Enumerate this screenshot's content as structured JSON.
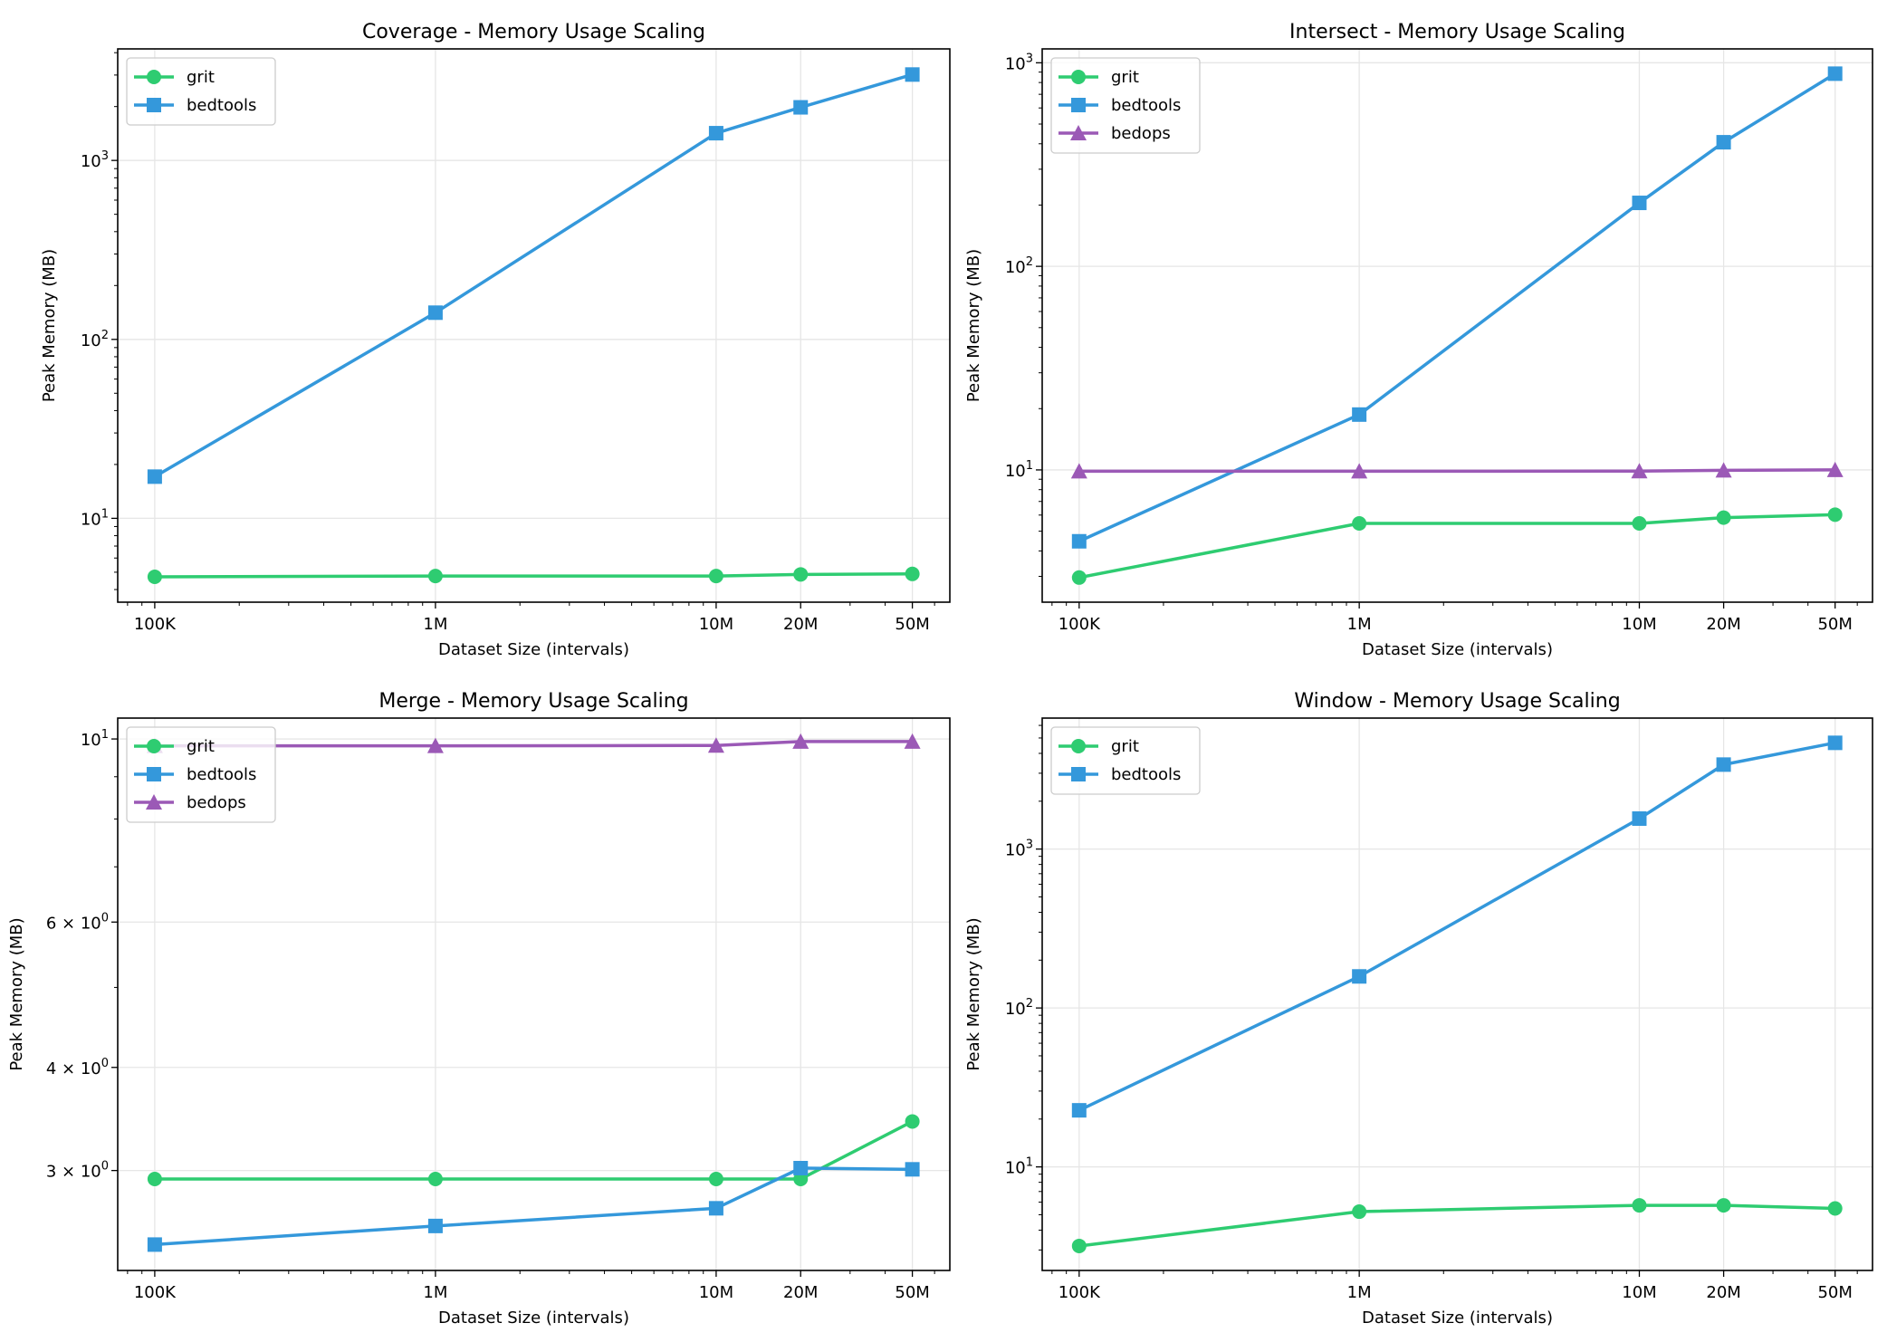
{
  "chart_data": [
    {
      "type": "line",
      "title": "Coverage - Memory Usage Scaling",
      "xlabel": "Dataset Size (intervals)",
      "ylabel": "Peak Memory (MB)",
      "xscale": "log",
      "yscale": "log",
      "xlim": [
        73800,
        68000000
      ],
      "ylim": [
        3.4,
        4200
      ],
      "grid": true,
      "legend_position": "top-left",
      "x": [
        100000,
        1000000,
        10000000,
        20000000,
        50000000
      ],
      "xtick_labels": [
        "100K",
        "1M",
        "10M",
        "20M",
        "50M"
      ],
      "yticks": [
        {
          "value": 10,
          "mantissa": "",
          "base": "10",
          "exponent": "1"
        },
        {
          "value": 100,
          "mantissa": "",
          "base": "10",
          "exponent": "2"
        },
        {
          "value": 1000,
          "mantissa": "",
          "base": "10",
          "exponent": "3"
        }
      ],
      "series": [
        {
          "name": "grit",
          "color": "#2ecc71",
          "marker": "circle",
          "values": [
            4.71,
            4.76,
            4.76,
            4.86,
            4.89
          ]
        },
        {
          "name": "bedtools",
          "color": "#3498db",
          "marker": "square",
          "values": [
            17.1,
            141,
            1420,
            1980,
            3020
          ]
        }
      ]
    },
    {
      "type": "line",
      "title": "Intersect - Memory Usage Scaling",
      "xlabel": "Dataset Size (intervals)",
      "ylabel": "Peak Memory (MB)",
      "xscale": "log",
      "yscale": "log",
      "xlim": [
        73800,
        68000000
      ],
      "ylim": [
        2.24,
        1170
      ],
      "grid": true,
      "legend_position": "top-left",
      "x": [
        100000,
        1000000,
        10000000,
        20000000,
        50000000
      ],
      "xtick_labels": [
        "100K",
        "1M",
        "10M",
        "20M",
        "50M"
      ],
      "yticks": [
        {
          "value": 10,
          "mantissa": "",
          "base": "10",
          "exponent": "1"
        },
        {
          "value": 100,
          "mantissa": "",
          "base": "10",
          "exponent": "2"
        },
        {
          "value": 1000,
          "mantissa": "",
          "base": "10",
          "exponent": "3"
        }
      ],
      "series": [
        {
          "name": "grit",
          "color": "#2ecc71",
          "marker": "circle",
          "values": [
            2.96,
            5.46,
            5.46,
            5.83,
            6.03
          ]
        },
        {
          "name": "bedtools",
          "color": "#3498db",
          "marker": "square",
          "values": [
            4.46,
            18.7,
            205,
            407,
            884
          ]
        },
        {
          "name": "bedops",
          "color": "#9b59b6",
          "marker": "triangle",
          "values": [
            9.85,
            9.85,
            9.87,
            9.95,
            10.0
          ]
        }
      ]
    },
    {
      "type": "line",
      "title": "Merge - Memory Usage Scaling",
      "xlabel": "Dataset Size (intervals)",
      "ylabel": "Peak Memory (MB)",
      "xscale": "log",
      "yscale": "log",
      "xlim": [
        73800,
        68000000
      ],
      "ylim": [
        2.27,
        10.6
      ],
      "grid": true,
      "legend_position": "top-left",
      "x": [
        100000,
        1000000,
        10000000,
        20000000,
        50000000
      ],
      "xtick_labels": [
        "100K",
        "1M",
        "10M",
        "20M",
        "50M"
      ],
      "yticks": [
        {
          "value": 3,
          "mantissa": "3 × ",
          "base": "10",
          "exponent": "0"
        },
        {
          "value": 4,
          "mantissa": "4 × ",
          "base": "10",
          "exponent": "0"
        },
        {
          "value": 6,
          "mantissa": "6 × ",
          "base": "10",
          "exponent": "0"
        },
        {
          "value": 10,
          "mantissa": "",
          "base": "10",
          "exponent": "1"
        }
      ],
      "series": [
        {
          "name": "grit",
          "color": "#2ecc71",
          "marker": "circle",
          "values": [
            2.93,
            2.93,
            2.93,
            2.93,
            3.44
          ]
        },
        {
          "name": "bedtools",
          "color": "#3498db",
          "marker": "square",
          "values": [
            2.44,
            2.57,
            2.7,
            3.02,
            3.01
          ]
        },
        {
          "name": "bedops",
          "color": "#9b59b6",
          "marker": "triangle",
          "values": [
            9.81,
            9.81,
            9.82,
            9.93,
            9.93
          ]
        }
      ]
    },
    {
      "type": "line",
      "title": "Window - Memory Usage Scaling",
      "xlabel": "Dataset Size (intervals)",
      "ylabel": "Peak Memory (MB)",
      "xscale": "log",
      "yscale": "log",
      "xlim": [
        73800,
        68000000
      ],
      "ylim": [
        2.23,
        6670
      ],
      "grid": true,
      "legend_position": "top-left",
      "x": [
        100000,
        1000000,
        10000000,
        20000000,
        50000000
      ],
      "xtick_labels": [
        "100K",
        "1M",
        "10M",
        "20M",
        "50M"
      ],
      "yticks": [
        {
          "value": 10,
          "mantissa": "",
          "base": "10",
          "exponent": "1"
        },
        {
          "value": 100,
          "mantissa": "",
          "base": "10",
          "exponent": "2"
        },
        {
          "value": 1000,
          "mantissa": "",
          "base": "10",
          "exponent": "3"
        }
      ],
      "series": [
        {
          "name": "grit",
          "color": "#2ecc71",
          "marker": "circle",
          "values": [
            3.18,
            5.23,
            5.73,
            5.73,
            5.48
          ]
        },
        {
          "name": "bedtools",
          "color": "#3498db",
          "marker": "square",
          "values": [
            22.7,
            158,
            1555,
            3400,
            4660
          ]
        }
      ]
    }
  ]
}
